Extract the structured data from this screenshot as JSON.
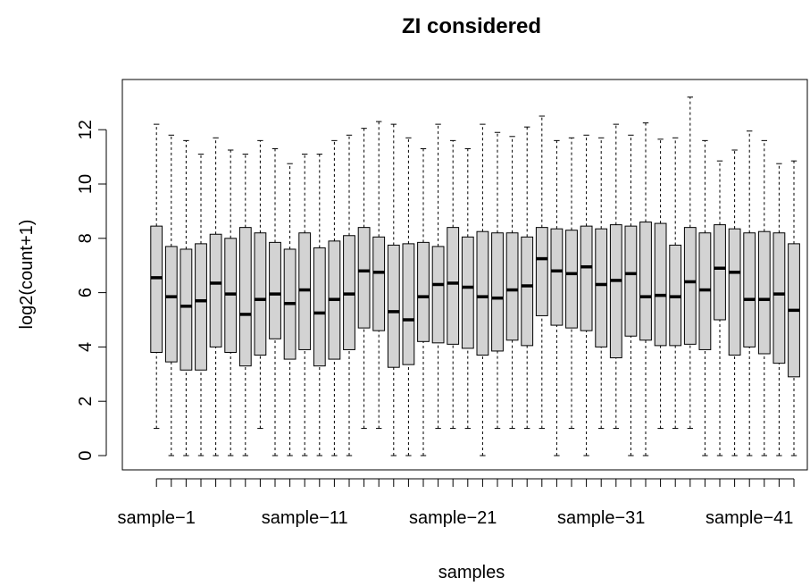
{
  "chart_data": {
    "type": "boxplot",
    "title": "ZI considered",
    "xlabel": "samples",
    "ylabel": "log2(count+1)",
    "ylim": [
      -0.5,
      13.6
    ],
    "y_ticks": [
      0,
      2,
      4,
      6,
      8,
      10,
      12
    ],
    "x_tick_labels": [
      "sample−1",
      "sample−11",
      "sample−21",
      "sample−31",
      "sample−41"
    ],
    "x_tick_label_positions": [
      1,
      11,
      21,
      31,
      41
    ],
    "box_fill": "#d3d3d3",
    "samples": [
      {
        "name": "sample-1",
        "whisker_low": 1.0,
        "q1": 3.8,
        "median": 6.55,
        "q3": 8.45,
        "whisker_high": 12.2
      },
      {
        "name": "sample-2",
        "whisker_low": 0.0,
        "q1": 3.45,
        "median": 5.85,
        "q3": 7.7,
        "whisker_high": 11.8
      },
      {
        "name": "sample-3",
        "whisker_low": 0.0,
        "q1": 3.15,
        "median": 5.5,
        "q3": 7.6,
        "whisker_high": 11.6
      },
      {
        "name": "sample-4",
        "whisker_low": 0.0,
        "q1": 3.15,
        "median": 5.7,
        "q3": 7.8,
        "whisker_high": 11.1
      },
      {
        "name": "sample-5",
        "whisker_low": 0.0,
        "q1": 4.0,
        "median": 6.35,
        "q3": 8.15,
        "whisker_high": 11.7
      },
      {
        "name": "sample-6",
        "whisker_low": 0.0,
        "q1": 3.8,
        "median": 5.95,
        "q3": 8.0,
        "whisker_high": 11.25
      },
      {
        "name": "sample-7",
        "whisker_low": 0.0,
        "q1": 3.3,
        "median": 5.2,
        "q3": 8.4,
        "whisker_high": 11.1
      },
      {
        "name": "sample-8",
        "whisker_low": 1.0,
        "q1": 3.7,
        "median": 5.75,
        "q3": 8.2,
        "whisker_high": 11.6
      },
      {
        "name": "sample-9",
        "whisker_low": 0.0,
        "q1": 4.3,
        "median": 5.95,
        "q3": 7.85,
        "whisker_high": 11.3
      },
      {
        "name": "sample-10",
        "whisker_low": 0.0,
        "q1": 3.55,
        "median": 5.6,
        "q3": 7.6,
        "whisker_high": 10.75
      },
      {
        "name": "sample-11",
        "whisker_low": 0.0,
        "q1": 3.9,
        "median": 6.1,
        "q3": 8.2,
        "whisker_high": 11.1
      },
      {
        "name": "sample-12",
        "whisker_low": 0.0,
        "q1": 3.3,
        "median": 5.25,
        "q3": 7.65,
        "whisker_high": 11.1
      },
      {
        "name": "sample-13",
        "whisker_low": 0.0,
        "q1": 3.55,
        "median": 5.75,
        "q3": 7.9,
        "whisker_high": 11.6
      },
      {
        "name": "sample-14",
        "whisker_low": 0.0,
        "q1": 3.9,
        "median": 5.95,
        "q3": 8.1,
        "whisker_high": 11.8
      },
      {
        "name": "sample-15",
        "whisker_low": 1.0,
        "q1": 4.7,
        "median": 6.8,
        "q3": 8.4,
        "whisker_high": 12.05
      },
      {
        "name": "sample-16",
        "whisker_low": 1.0,
        "q1": 4.6,
        "median": 6.75,
        "q3": 8.05,
        "whisker_high": 12.3
      },
      {
        "name": "sample-17",
        "whisker_low": 0.0,
        "q1": 3.25,
        "median": 5.3,
        "q3": 7.75,
        "whisker_high": 12.2
      },
      {
        "name": "sample-18",
        "whisker_low": 0.0,
        "q1": 3.35,
        "median": 5.0,
        "q3": 7.8,
        "whisker_high": 11.7
      },
      {
        "name": "sample-19",
        "whisker_low": 0.0,
        "q1": 4.2,
        "median": 5.85,
        "q3": 7.85,
        "whisker_high": 11.3
      },
      {
        "name": "sample-20",
        "whisker_low": 1.0,
        "q1": 4.15,
        "median": 6.3,
        "q3": 7.7,
        "whisker_high": 12.2
      },
      {
        "name": "sample-21",
        "whisker_low": 1.0,
        "q1": 4.1,
        "median": 6.35,
        "q3": 8.4,
        "whisker_high": 11.6
      },
      {
        "name": "sample-22",
        "whisker_low": 1.0,
        "q1": 3.95,
        "median": 6.2,
        "q3": 8.05,
        "whisker_high": 11.3
      },
      {
        "name": "sample-23",
        "whisker_low": 0.0,
        "q1": 3.7,
        "median": 5.85,
        "q3": 8.25,
        "whisker_high": 12.2
      },
      {
        "name": "sample-24",
        "whisker_low": 1.0,
        "q1": 3.85,
        "median": 5.8,
        "q3": 8.2,
        "whisker_high": 11.9
      },
      {
        "name": "sample-25",
        "whisker_low": 1.0,
        "q1": 4.25,
        "median": 6.1,
        "q3": 8.2,
        "whisker_high": 11.75
      },
      {
        "name": "sample-26",
        "whisker_low": 1.0,
        "q1": 4.05,
        "median": 6.25,
        "q3": 8.05,
        "whisker_high": 12.1
      },
      {
        "name": "sample-27",
        "whisker_low": 1.0,
        "q1": 5.15,
        "median": 7.25,
        "q3": 8.4,
        "whisker_high": 12.5
      },
      {
        "name": "sample-28",
        "whisker_low": 0.0,
        "q1": 4.8,
        "median": 6.8,
        "q3": 8.35,
        "whisker_high": 11.6
      },
      {
        "name": "sample-29",
        "whisker_low": 1.0,
        "q1": 4.7,
        "median": 6.7,
        "q3": 8.3,
        "whisker_high": 11.7
      },
      {
        "name": "sample-30",
        "whisker_low": 0.0,
        "q1": 4.6,
        "median": 6.95,
        "q3": 8.45,
        "whisker_high": 11.8
      },
      {
        "name": "sample-31",
        "whisker_low": 1.0,
        "q1": 4.0,
        "median": 6.3,
        "q3": 8.35,
        "whisker_high": 11.7
      },
      {
        "name": "sample-32",
        "whisker_low": 1.0,
        "q1": 3.6,
        "median": 6.45,
        "q3": 8.5,
        "whisker_high": 12.2
      },
      {
        "name": "sample-33",
        "whisker_low": 0.0,
        "q1": 4.4,
        "median": 6.7,
        "q3": 8.45,
        "whisker_high": 11.8
      },
      {
        "name": "sample-34",
        "whisker_low": 0.0,
        "q1": 4.25,
        "median": 5.85,
        "q3": 8.6,
        "whisker_high": 12.25
      },
      {
        "name": "sample-35",
        "whisker_low": 1.0,
        "q1": 4.05,
        "median": 5.9,
        "q3": 8.55,
        "whisker_high": 11.65
      },
      {
        "name": "sample-36",
        "whisker_low": 1.0,
        "q1": 4.05,
        "median": 5.85,
        "q3": 7.75,
        "whisker_high": 11.7
      },
      {
        "name": "sample-37",
        "whisker_low": 1.0,
        "q1": 4.1,
        "median": 6.4,
        "q3": 8.4,
        "whisker_high": 13.2
      },
      {
        "name": "sample-38",
        "whisker_low": 0.0,
        "q1": 3.9,
        "median": 6.1,
        "q3": 8.2,
        "whisker_high": 11.6
      },
      {
        "name": "sample-39",
        "whisker_low": 0.0,
        "q1": 5.0,
        "median": 6.9,
        "q3": 8.5,
        "whisker_high": 10.85
      },
      {
        "name": "sample-40",
        "whisker_low": 0.0,
        "q1": 3.7,
        "median": 6.75,
        "q3": 8.35,
        "whisker_high": 11.25
      },
      {
        "name": "sample-41",
        "whisker_low": 0.0,
        "q1": 4.0,
        "median": 5.75,
        "q3": 8.2,
        "whisker_high": 11.95
      },
      {
        "name": "sample-42",
        "whisker_low": 0.0,
        "q1": 3.75,
        "median": 5.75,
        "q3": 8.25,
        "whisker_high": 11.6
      },
      {
        "name": "sample-43",
        "whisker_low": 0.0,
        "q1": 3.4,
        "median": 5.95,
        "q3": 8.2,
        "whisker_high": 10.75
      },
      {
        "name": "sample-44",
        "whisker_low": 0.0,
        "q1": 2.9,
        "median": 5.35,
        "q3": 7.8,
        "whisker_high": 10.85
      }
    ]
  }
}
